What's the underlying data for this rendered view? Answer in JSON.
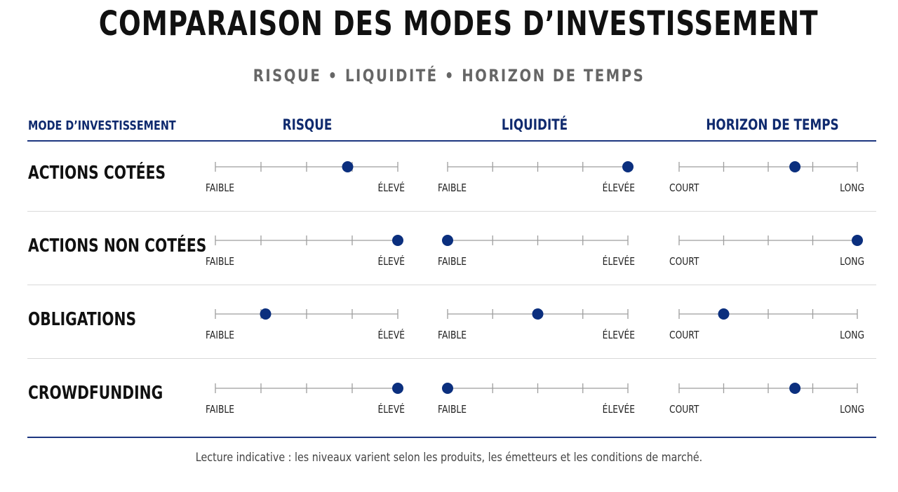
{
  "title": "COMPARAISON DES MODES D’INVESTISSEMENT",
  "subtitle": "RISQUE • LIQUIDITÉ • HORIZON DE TEMPS",
  "footnote": "Lecture indicative : les niveaux varient selon les produits, les émetteurs et les conditions de marché.",
  "colors": {
    "accent": "#0f2a6e",
    "dot": "#0b2f7e",
    "scale": "#9e9e9e",
    "rule": "#1d3680"
  },
  "chart_data": {
    "type": "table",
    "row_header": "MODE D’INVESTISSEMENT",
    "scale_steps": 5,
    "value_range": [
      0,
      4
    ],
    "columns": [
      {
        "key": "risque",
        "header": "RISQUE",
        "low_label": "FAIBLE",
        "high_label": "ÉLEVÉ"
      },
      {
        "key": "liquidite",
        "header": "LIQUIDITÉ",
        "low_label": "FAIBLE",
        "high_label": "ÉLEVÉE"
      },
      {
        "key": "horizon",
        "header": "HORIZON DE TEMPS",
        "low_label": "COURT",
        "high_label": "LONG"
      }
    ],
    "rows": [
      {
        "label": "ACTIONS COTÉES",
        "values": [
          2.9,
          4,
          2.6
        ]
      },
      {
        "label": "ACTIONS NON COTÉES",
        "values": [
          4,
          0,
          4
        ]
      },
      {
        "label": "OBLIGATIONS",
        "values": [
          1.1,
          2,
          1
        ]
      },
      {
        "label": "CROWDFUNDING",
        "values": [
          4,
          0,
          2.6
        ]
      }
    ]
  }
}
